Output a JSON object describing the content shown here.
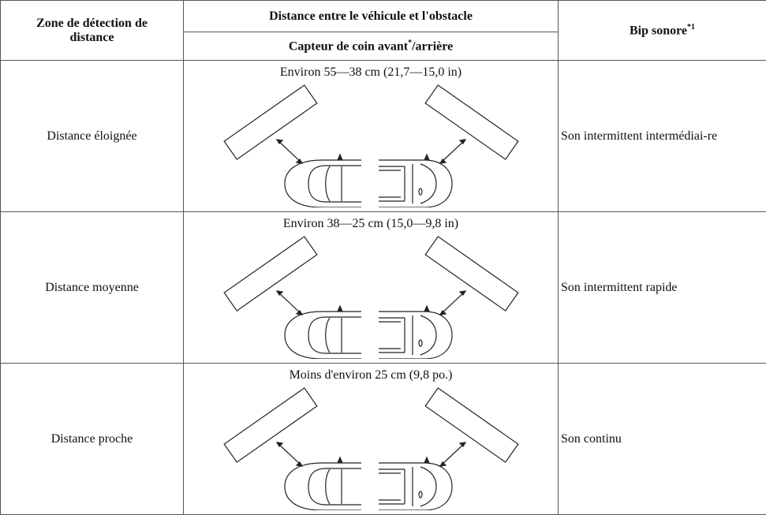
{
  "header": {
    "zone": "Zone de détection de distance",
    "distance": "Distance entre le véhicule et l'obstacle",
    "sensor": "Capteur de coin avant",
    "sensor_mark": "*",
    "sensor_rest": "/arrière",
    "beep": "Bip sonore",
    "beep_mark": "*1"
  },
  "rows": [
    {
      "zone": "Distance éloignée",
      "distance": "Environ 55—38 cm (21,7—15,0 in)",
      "beep": "Son intermittent intermédiai-re"
    },
    {
      "zone": "Distance moyenne",
      "distance": "Environ 38—25 cm (15,0—9,8 in)",
      "beep": "Son intermittent rapide"
    },
    {
      "zone": "Distance proche",
      "distance": "Moins d'environ 25 cm (9,8 po.)",
      "beep": "Son continu"
    }
  ]
}
